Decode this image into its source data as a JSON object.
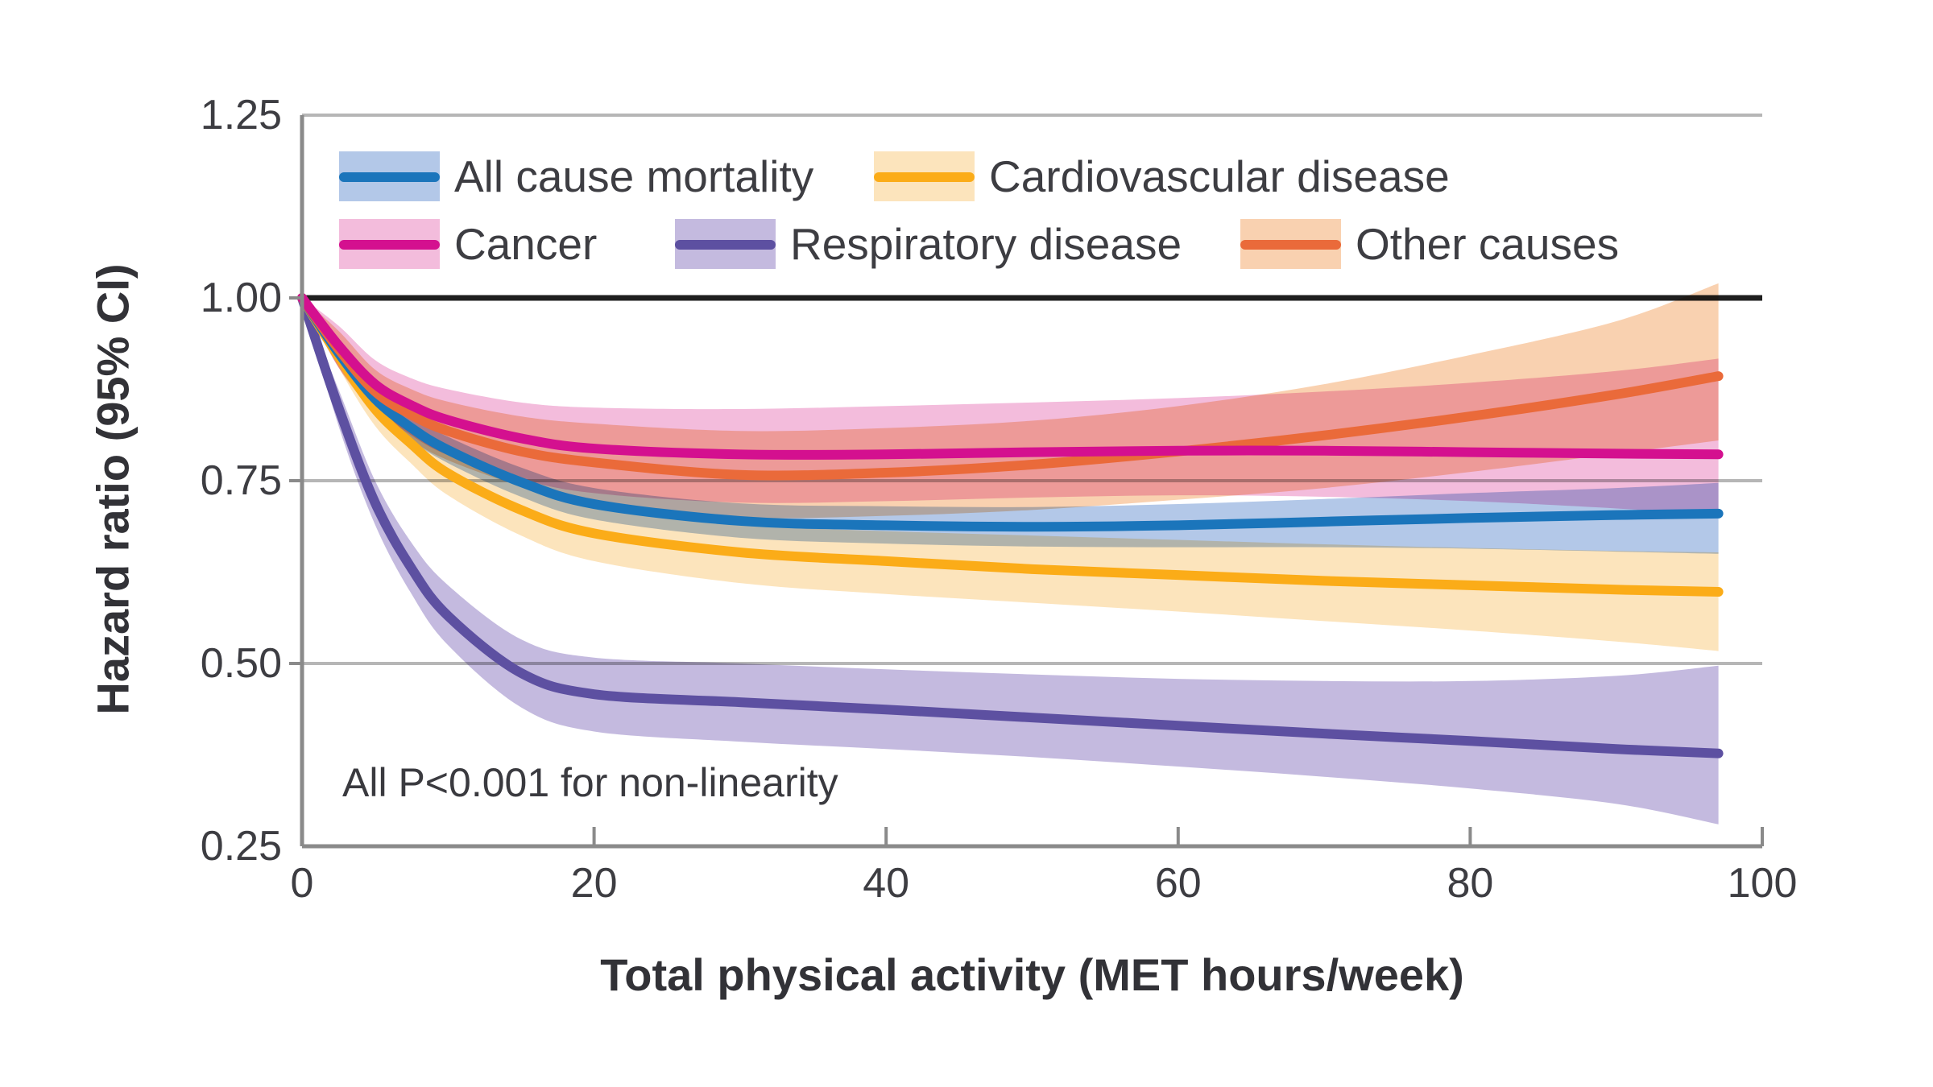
{
  "figure": {
    "background": "#ffffff",
    "axis_color": "#8a8a8a",
    "gridline_color": "#b6b6b6",
    "reference_line_color": "#1f1f1f",
    "text_color": "#3d3d42"
  },
  "chart_data": {
    "type": "line",
    "title": "",
    "xlabel": "Total physical activity (MET hours/week)",
    "ylabel": "Hazard ratio (95% CI)",
    "annotation": "All P<0.001 for non-linearity",
    "xlim": [
      0,
      100
    ],
    "ylim": [
      0.25,
      1.25
    ],
    "x_ticks": [
      0,
      20,
      40,
      60,
      80,
      100
    ],
    "y_ticks": [
      "1.25",
      "1.00",
      "0.75",
      "0.50",
      "0.25"
    ],
    "y_tick_values": [
      1.25,
      1.0,
      0.75,
      0.5,
      0.25
    ],
    "reference_line_y": 1.0,
    "grid": "horizontal",
    "legend_position": "top-left-inside",
    "x": [
      0,
      2.5,
      5,
      7.5,
      10,
      15,
      20,
      30,
      40,
      50,
      60,
      70,
      80,
      90,
      97
    ],
    "series": [
      {
        "name": "All cause mortality",
        "color": "#1b75bb",
        "band_color": "#b3c8e8",
        "values": [
          1.0,
          0.925,
          0.862,
          0.822,
          0.792,
          0.748,
          0.718,
          0.695,
          0.689,
          0.687,
          0.689,
          0.694,
          0.699,
          0.703,
          0.705
        ],
        "lower": [
          1.0,
          0.912,
          0.847,
          0.805,
          0.774,
          0.728,
          0.697,
          0.672,
          0.664,
          0.66,
          0.659,
          0.659,
          0.657,
          0.653,
          0.65
        ],
        "upper": [
          1.0,
          0.936,
          0.876,
          0.838,
          0.81,
          0.768,
          0.74,
          0.719,
          0.715,
          0.714,
          0.718,
          0.725,
          0.733,
          0.74,
          0.747
        ]
      },
      {
        "name": "Cancer",
        "color": "#d4108f",
        "band_color": "#f3bcdc",
        "values": [
          1.0,
          0.935,
          0.882,
          0.853,
          0.833,
          0.808,
          0.794,
          0.786,
          0.786,
          0.789,
          0.791,
          0.791,
          0.789,
          0.787,
          0.786
        ],
        "lower": [
          1.0,
          0.905,
          0.85,
          0.812,
          0.785,
          0.752,
          0.733,
          0.72,
          0.722,
          0.727,
          0.73,
          0.728,
          0.722,
          0.712,
          0.703
        ],
        "upper": [
          1.0,
          0.962,
          0.915,
          0.89,
          0.875,
          0.857,
          0.85,
          0.848,
          0.852,
          0.857,
          0.863,
          0.872,
          0.884,
          0.9,
          0.917
        ]
      },
      {
        "name": "Cardiovascular disease",
        "color": "#fbac18",
        "band_color": "#fce4bc",
        "values": [
          1.0,
          0.92,
          0.848,
          0.8,
          0.76,
          0.71,
          0.678,
          0.652,
          0.64,
          0.629,
          0.621,
          0.613,
          0.607,
          0.601,
          0.598
        ],
        "lower": [
          1.0,
          0.905,
          0.825,
          0.773,
          0.73,
          0.675,
          0.64,
          0.61,
          0.595,
          0.583,
          0.571,
          0.558,
          0.545,
          0.53,
          0.517
        ],
        "upper": [
          1.0,
          0.935,
          0.87,
          0.827,
          0.79,
          0.745,
          0.714,
          0.69,
          0.681,
          0.675,
          0.669,
          0.663,
          0.658,
          0.654,
          0.652
        ]
      },
      {
        "name": "Respiratory disease",
        "color": "#5d50a1",
        "band_color": "#c4badf",
        "values": [
          1.0,
          0.85,
          0.72,
          0.63,
          0.565,
          0.487,
          0.458,
          0.447,
          0.437,
          0.426,
          0.415,
          0.404,
          0.394,
          0.383,
          0.377
        ],
        "lower": [
          1.0,
          0.825,
          0.69,
          0.595,
          0.525,
          0.44,
          0.407,
          0.393,
          0.383,
          0.372,
          0.359,
          0.345,
          0.329,
          0.308,
          0.28
        ],
        "upper": [
          1.0,
          0.875,
          0.75,
          0.665,
          0.607,
          0.533,
          0.508,
          0.5,
          0.492,
          0.485,
          0.479,
          0.476,
          0.476,
          0.483,
          0.497
        ]
      },
      {
        "name": "Other causes",
        "color": "#ea6a3a",
        "band_color": "#f9d1b0",
        "values": [
          1.0,
          0.93,
          0.872,
          0.84,
          0.818,
          0.79,
          0.775,
          0.758,
          0.761,
          0.772,
          0.79,
          0.812,
          0.838,
          0.868,
          0.893
        ],
        "lower": [
          1.0,
          0.905,
          0.843,
          0.805,
          0.778,
          0.743,
          0.722,
          0.7,
          0.702,
          0.71,
          0.724,
          0.74,
          0.762,
          0.787,
          0.805
        ],
        "upper": [
          1.0,
          0.955,
          0.902,
          0.875,
          0.858,
          0.838,
          0.828,
          0.818,
          0.822,
          0.832,
          0.852,
          0.882,
          0.922,
          0.968,
          1.02
        ]
      }
    ],
    "legend_rows": [
      [
        "All cause mortality",
        "Cardiovascular disease"
      ],
      [
        "Cancer",
        "Respiratory disease",
        "Other causes"
      ]
    ]
  }
}
